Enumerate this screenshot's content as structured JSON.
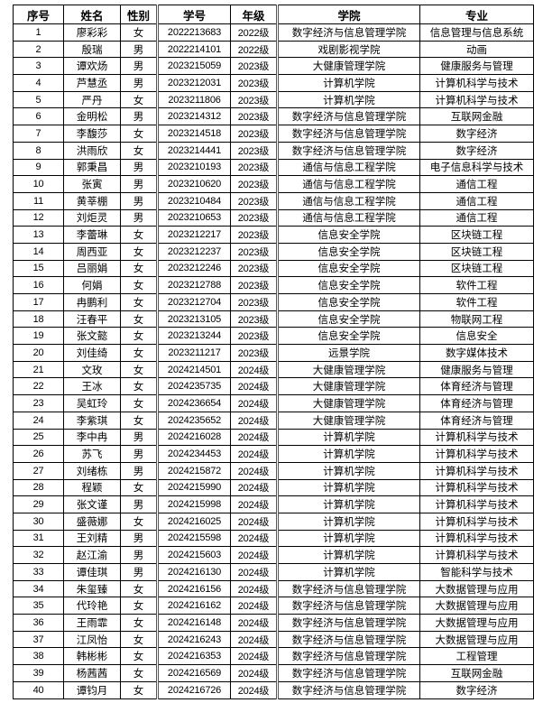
{
  "table": {
    "headers": [
      "序号",
      "姓名",
      "性别",
      "学号",
      "年级",
      "学院",
      "专业"
    ],
    "rows": [
      [
        "1",
        "廖彩彩",
        "女",
        "2022213683",
        "2022级",
        "数字经济与信息管理学院",
        "信息管理与信息系统"
      ],
      [
        "2",
        "殷瑞",
        "男",
        "2022214101",
        "2022级",
        "戏剧影视学院",
        "动画"
      ],
      [
        "3",
        "谭欢炀",
        "男",
        "2023215059",
        "2023级",
        "大健康管理学院",
        "健康服务与管理"
      ],
      [
        "4",
        "芦慧丞",
        "男",
        "2023212031",
        "2023级",
        "计算机学院",
        "计算机科学与技术"
      ],
      [
        "5",
        "严丹",
        "女",
        "2023211806",
        "2023级",
        "计算机学院",
        "计算机科学与技术"
      ],
      [
        "6",
        "金明松",
        "男",
        "2023214312",
        "2023级",
        "数字经济与信息管理学院",
        "互联网金融"
      ],
      [
        "7",
        "李馥莎",
        "女",
        "2023214518",
        "2023级",
        "数字经济与信息管理学院",
        "数字经济"
      ],
      [
        "8",
        "洪雨欣",
        "女",
        "2023214441",
        "2023级",
        "数字经济与信息管理学院",
        "数字经济"
      ],
      [
        "9",
        "郭秉昌",
        "男",
        "2023210193",
        "2023级",
        "通信与信息工程学院",
        "电子信息科学与技术"
      ],
      [
        "10",
        "张寅",
        "男",
        "2023210620",
        "2023级",
        "通信与信息工程学院",
        "通信工程"
      ],
      [
        "11",
        "黄莘棚",
        "男",
        "2023210484",
        "2023级",
        "通信与信息工程学院",
        "通信工程"
      ],
      [
        "12",
        "刘炬灵",
        "男",
        "2023210653",
        "2023级",
        "通信与信息工程学院",
        "通信工程"
      ],
      [
        "13",
        "李蕾琳",
        "女",
        "2023212217",
        "2023级",
        "信息安全学院",
        "区块链工程"
      ],
      [
        "14",
        "周西亚",
        "女",
        "2023212237",
        "2023级",
        "信息安全学院",
        "区块链工程"
      ],
      [
        "15",
        "吕丽娟",
        "女",
        "2023212246",
        "2023级",
        "信息安全学院",
        "区块链工程"
      ],
      [
        "16",
        "何娟",
        "女",
        "2023212788",
        "2023级",
        "信息安全学院",
        "软件工程"
      ],
      [
        "17",
        "冉鹏利",
        "女",
        "2023212704",
        "2023级",
        "信息安全学院",
        "软件工程"
      ],
      [
        "18",
        "汪春平",
        "女",
        "2023213105",
        "2023级",
        "信息安全学院",
        "物联网工程"
      ],
      [
        "19",
        "张文懿",
        "女",
        "2023213244",
        "2023级",
        "信息安全学院",
        "信息安全"
      ],
      [
        "20",
        "刘佳绮",
        "女",
        "2023211217",
        "2023级",
        "远景学院",
        "数字媒体技术"
      ],
      [
        "21",
        "文玫",
        "女",
        "2024214501",
        "2024级",
        "大健康管理学院",
        "健康服务与管理"
      ],
      [
        "22",
        "王冰",
        "女",
        "2024235735",
        "2024级",
        "大健康管理学院",
        "体育经济与管理"
      ],
      [
        "23",
        "吴虹玲",
        "女",
        "2024236654",
        "2024级",
        "大健康管理学院",
        "体育经济与管理"
      ],
      [
        "24",
        "李紫琪",
        "女",
        "2024235652",
        "2024级",
        "大健康管理学院",
        "体育经济与管理"
      ],
      [
        "25",
        "李中冉",
        "男",
        "2024216028",
        "2024级",
        "计算机学院",
        "计算机科学与技术"
      ],
      [
        "26",
        "苏飞",
        "男",
        "2024234453",
        "2024级",
        "计算机学院",
        "计算机科学与技术"
      ],
      [
        "27",
        "刘绪栋",
        "男",
        "2024215872",
        "2024级",
        "计算机学院",
        "计算机科学与技术"
      ],
      [
        "28",
        "程颖",
        "女",
        "2024215990",
        "2024级",
        "计算机学院",
        "计算机科学与技术"
      ],
      [
        "29",
        "张文谨",
        "男",
        "2024215998",
        "2024级",
        "计算机学院",
        "计算机科学与技术"
      ],
      [
        "30",
        "盛薇娜",
        "女",
        "2024216025",
        "2024级",
        "计算机学院",
        "计算机科学与技术"
      ],
      [
        "31",
        "王刘精",
        "男",
        "2024215598",
        "2024级",
        "计算机学院",
        "计算机科学与技术"
      ],
      [
        "32",
        "赵江渝",
        "男",
        "2024215603",
        "2024级",
        "计算机学院",
        "计算机科学与技术"
      ],
      [
        "33",
        "谭佳琪",
        "男",
        "2024216130",
        "2024级",
        "计算机学院",
        "智能科学与技术"
      ],
      [
        "34",
        "朱玺臻",
        "女",
        "2024216156",
        "2024级",
        "数字经济与信息管理学院",
        "大数据管理与应用"
      ],
      [
        "35",
        "代玲艳",
        "女",
        "2024216162",
        "2024级",
        "数字经济与信息管理学院",
        "大数据管理与应用"
      ],
      [
        "36",
        "王雨霏",
        "女",
        "2024216148",
        "2024级",
        "数字经济与信息管理学院",
        "大数据管理与应用"
      ],
      [
        "37",
        "江凤怡",
        "女",
        "2024216243",
        "2024级",
        "数字经济与信息管理学院",
        "大数据管理与应用"
      ],
      [
        "38",
        "韩彬彬",
        "女",
        "2024216353",
        "2024级",
        "数字经济与信息管理学院",
        "工程管理"
      ],
      [
        "39",
        "杨茜茜",
        "女",
        "2024216569",
        "2024级",
        "数字经济与信息管理学院",
        "互联网金融"
      ],
      [
        "40",
        "谭钧月",
        "女",
        "2024216726",
        "2024级",
        "数字经济与信息管理学院",
        "数字经济"
      ]
    ]
  }
}
